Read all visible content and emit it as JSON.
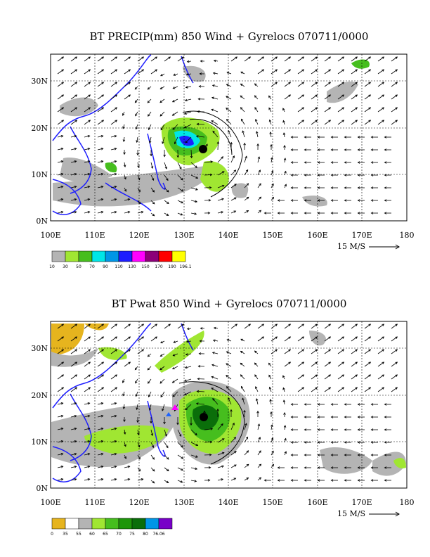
{
  "panels": [
    {
      "title": "BT PRECIP(mm) 850 Wind + Gyrelocs 070711/0000",
      "x_ticks": [
        "100E",
        "110E",
        "120E",
        "130E",
        "140E",
        "150E",
        "160E",
        "170E",
        "180"
      ],
      "y_ticks": [
        "30N",
        "20N",
        "10N",
        "0N"
      ],
      "scale_label": "15 M/S",
      "legend_colors": [
        "#b4b4b4",
        "#a0e632",
        "#46be1e",
        "#00e6e6",
        "#0096e6",
        "#1e1eff",
        "#ff00ff",
        "#8c0078",
        "#ff0000",
        "#ffff00"
      ],
      "legend_labels": [
        "10",
        "30",
        "50",
        "70",
        "90",
        "110",
        "130",
        "150",
        "170",
        "190",
        "196.1"
      ]
    },
    {
      "title": "BT Pwat 850 Wind + Gyrelocs 070711/0000",
      "x_ticks": [
        "100E",
        "110E",
        "120E",
        "130E",
        "140E",
        "150E",
        "160E",
        "170E",
        "180"
      ],
      "y_ticks": [
        "30N",
        "20N",
        "10N",
        "0N"
      ],
      "scale_label": "15 M/S",
      "legend_colors": [
        "#e6b41e",
        "#ffffff",
        "#b4b4b4",
        "#a0e632",
        "#46be1e",
        "#1e960a",
        "#0a6e0a",
        "#0096e6",
        "#7800c8"
      ],
      "legend_labels": [
        "0",
        "35",
        "55",
        "60",
        "65",
        "70",
        "75",
        "80",
        "76.06"
      ]
    }
  ],
  "colors": {
    "coast": "#1e1eff",
    "frame": "#000000"
  }
}
